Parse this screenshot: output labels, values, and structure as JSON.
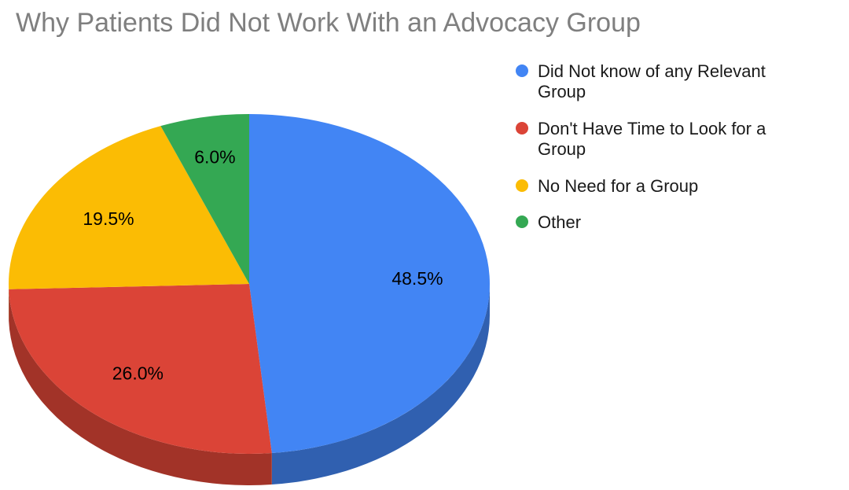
{
  "chart_data": {
    "type": "pie",
    "title": "Why Patients Did Not Work With an Advocacy Group",
    "effect": "3d",
    "legend_position": "right",
    "slices": [
      {
        "label": "Did Not know of any Relevant Group",
        "value": 48.5,
        "display": "48.5%",
        "color": "#4285F4",
        "side_color": "#3060B0"
      },
      {
        "label": "Don't Have Time to Look for a Group",
        "value": 26.0,
        "display": "26.0%",
        "color": "#DB4437",
        "side_color": "#A23328"
      },
      {
        "label": "No Need for a Group",
        "value": 19.5,
        "display": "19.5%",
        "color": "#FBBC04",
        "side_color": "#B58703"
      },
      {
        "label": "Other",
        "value": 6.0,
        "display": "6.0%",
        "color": "#34A853",
        "side_color": "#25793C"
      }
    ]
  }
}
